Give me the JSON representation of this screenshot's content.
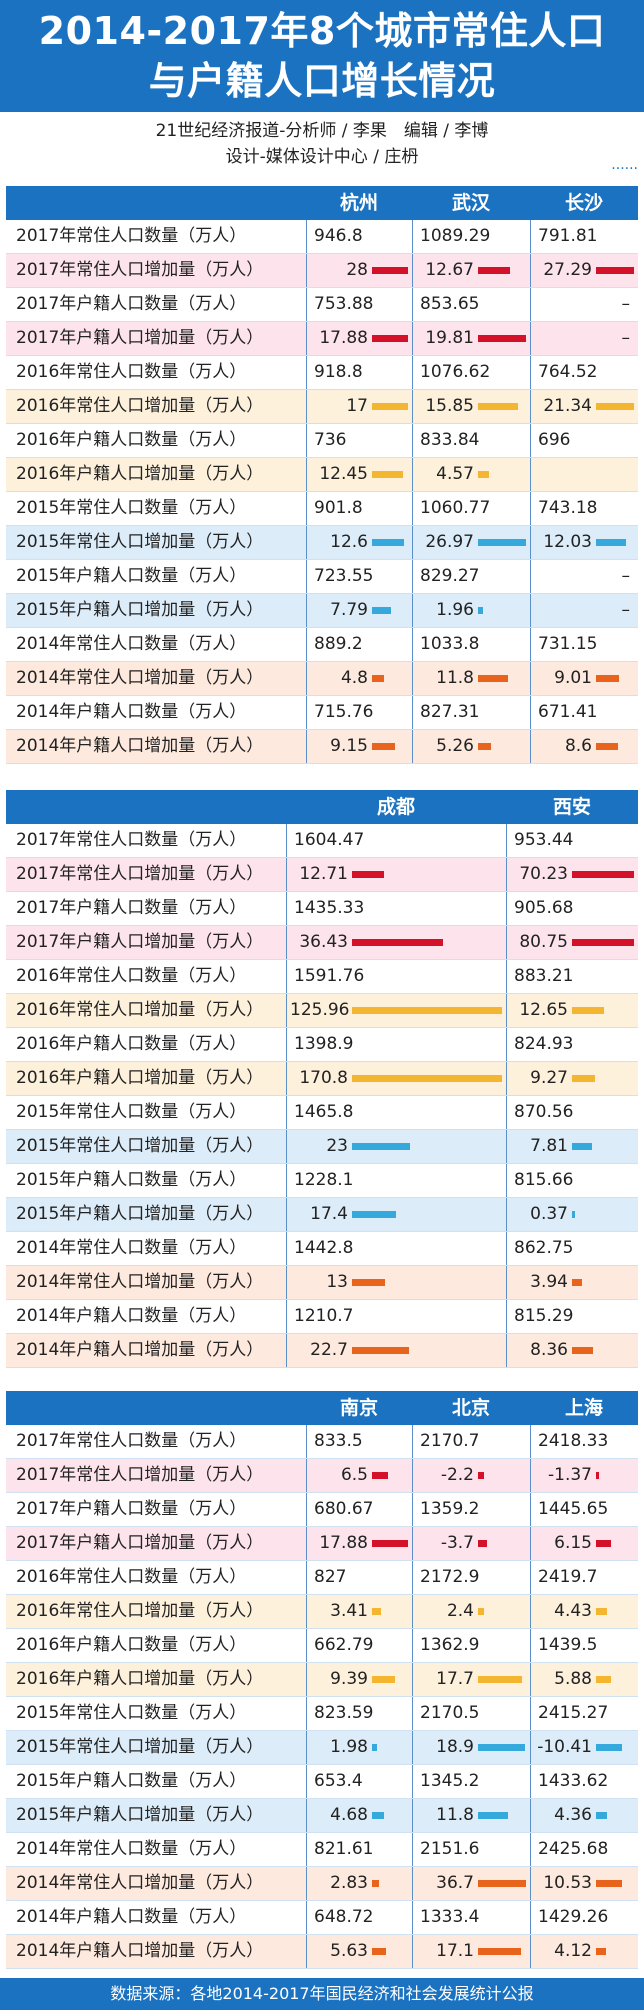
{
  "title": {
    "line1": "2014-2017年8个城市常住人口",
    "line2": "与户籍人口增长情况"
  },
  "byline": {
    "line1": "21世纪经济报道-分析师 / 李果　编辑 / 李博",
    "line2": "设计-媒体设计中心 / 庄枬",
    "dots": "......"
  },
  "footer": "数据来源：各地2014-2017年国民经济和社会发展统计公报",
  "colors": {
    "y2017": "#d3122a",
    "y2016": "#f4b531",
    "y2015": "#35a9dc",
    "y2014": "#e8641c"
  },
  "row_labels": [
    "2017年常住人口数量（万人）",
    "2017年常住人口增加量（万人）",
    "2017年户籍人口数量（万人）",
    "2017年户籍人口增加量（万人）",
    "2016年常住人口数量（万人）",
    "2016年常住人口增加量（万人）",
    "2016年户籍人口数量（万人）",
    "2016年户籍人口增加量（万人）",
    "2015年常住人口数量（万人）",
    "2015年常住人口增加量（万人）",
    "2015年户籍人口数量（万人）",
    "2015年户籍人口增加量（万人）",
    "2014年常住人口数量（万人）",
    "2014年常住人口增加量（万人）",
    "2014年户籍人口数量（万人）",
    "2014年户籍人口增加量（万人）"
  ],
  "chart_data": [
    {
      "type": "table",
      "cities": [
        "杭州",
        "武汉",
        "长沙"
      ],
      "values": [
        [
          "946.8",
          "1089.29",
          "791.81"
        ],
        [
          "28",
          "12.67",
          "27.29"
        ],
        [
          "753.88",
          "853.65",
          "–"
        ],
        [
          "17.88",
          "19.81",
          "–"
        ],
        [
          "918.8",
          "1076.62",
          "764.52"
        ],
        [
          "17",
          "15.85",
          "21.34"
        ],
        [
          "736",
          "833.84",
          "696"
        ],
        [
          "12.45",
          "4.57",
          ""
        ],
        [
          "901.8",
          "1060.77",
          "743.18"
        ],
        [
          "12.6",
          "26.97",
          "12.03"
        ],
        [
          "723.55",
          "829.27",
          "–"
        ],
        [
          "7.79",
          "1.96",
          "–"
        ],
        [
          "889.2",
          "1033.8",
          "731.15"
        ],
        [
          "4.8",
          "11.8",
          "9.01"
        ],
        [
          "715.76",
          "827.31",
          "671.41"
        ],
        [
          "9.15",
          "5.26",
          "8.6"
        ]
      ]
    },
    {
      "type": "table",
      "cities": [
        "成都",
        "西安"
      ],
      "values": [
        [
          "1604.47",
          "953.44"
        ],
        [
          "12.71",
          "70.23"
        ],
        [
          "1435.33",
          "905.68"
        ],
        [
          "36.43",
          "80.75"
        ],
        [
          "1591.76",
          "883.21"
        ],
        [
          "125.96",
          "12.65"
        ],
        [
          "1398.9",
          "824.93"
        ],
        [
          "170.8",
          "9.27"
        ],
        [
          "1465.8",
          "870.56"
        ],
        [
          "23",
          "7.81"
        ],
        [
          "1228.1",
          "815.66"
        ],
        [
          "17.4",
          "0.37"
        ],
        [
          "1442.8",
          "862.75"
        ],
        [
          "13",
          "3.94"
        ],
        [
          "1210.7",
          "815.29"
        ],
        [
          "22.7",
          "8.36"
        ]
      ]
    },
    {
      "type": "table",
      "cities": [
        "南京",
        "北京",
        "上海"
      ],
      "values": [
        [
          "833.5",
          "2170.7",
          "2418.33"
        ],
        [
          "6.5",
          "-2.2",
          "-1.37"
        ],
        [
          "680.67",
          "1359.2",
          "1445.65"
        ],
        [
          "17.88",
          "-3.7",
          "6.15"
        ],
        [
          "827",
          "2172.9",
          "2419.7"
        ],
        [
          "3.41",
          "2.4",
          "4.43"
        ],
        [
          "662.79",
          "1362.9",
          "1439.5"
        ],
        [
          "9.39",
          "17.7",
          "5.88"
        ],
        [
          "823.59",
          "2170.5",
          "2415.27"
        ],
        [
          "1.98",
          "18.9",
          "-10.41"
        ],
        [
          "653.4",
          "1345.2",
          "1433.62"
        ],
        [
          "4.68",
          "11.8",
          "4.36"
        ],
        [
          "821.61",
          "2151.6",
          "2425.68"
        ],
        [
          "2.83",
          "36.7",
          "10.53"
        ],
        [
          "648.72",
          "1333.4",
          "1429.26"
        ],
        [
          "5.63",
          "17.1",
          "4.12"
        ]
      ]
    }
  ]
}
